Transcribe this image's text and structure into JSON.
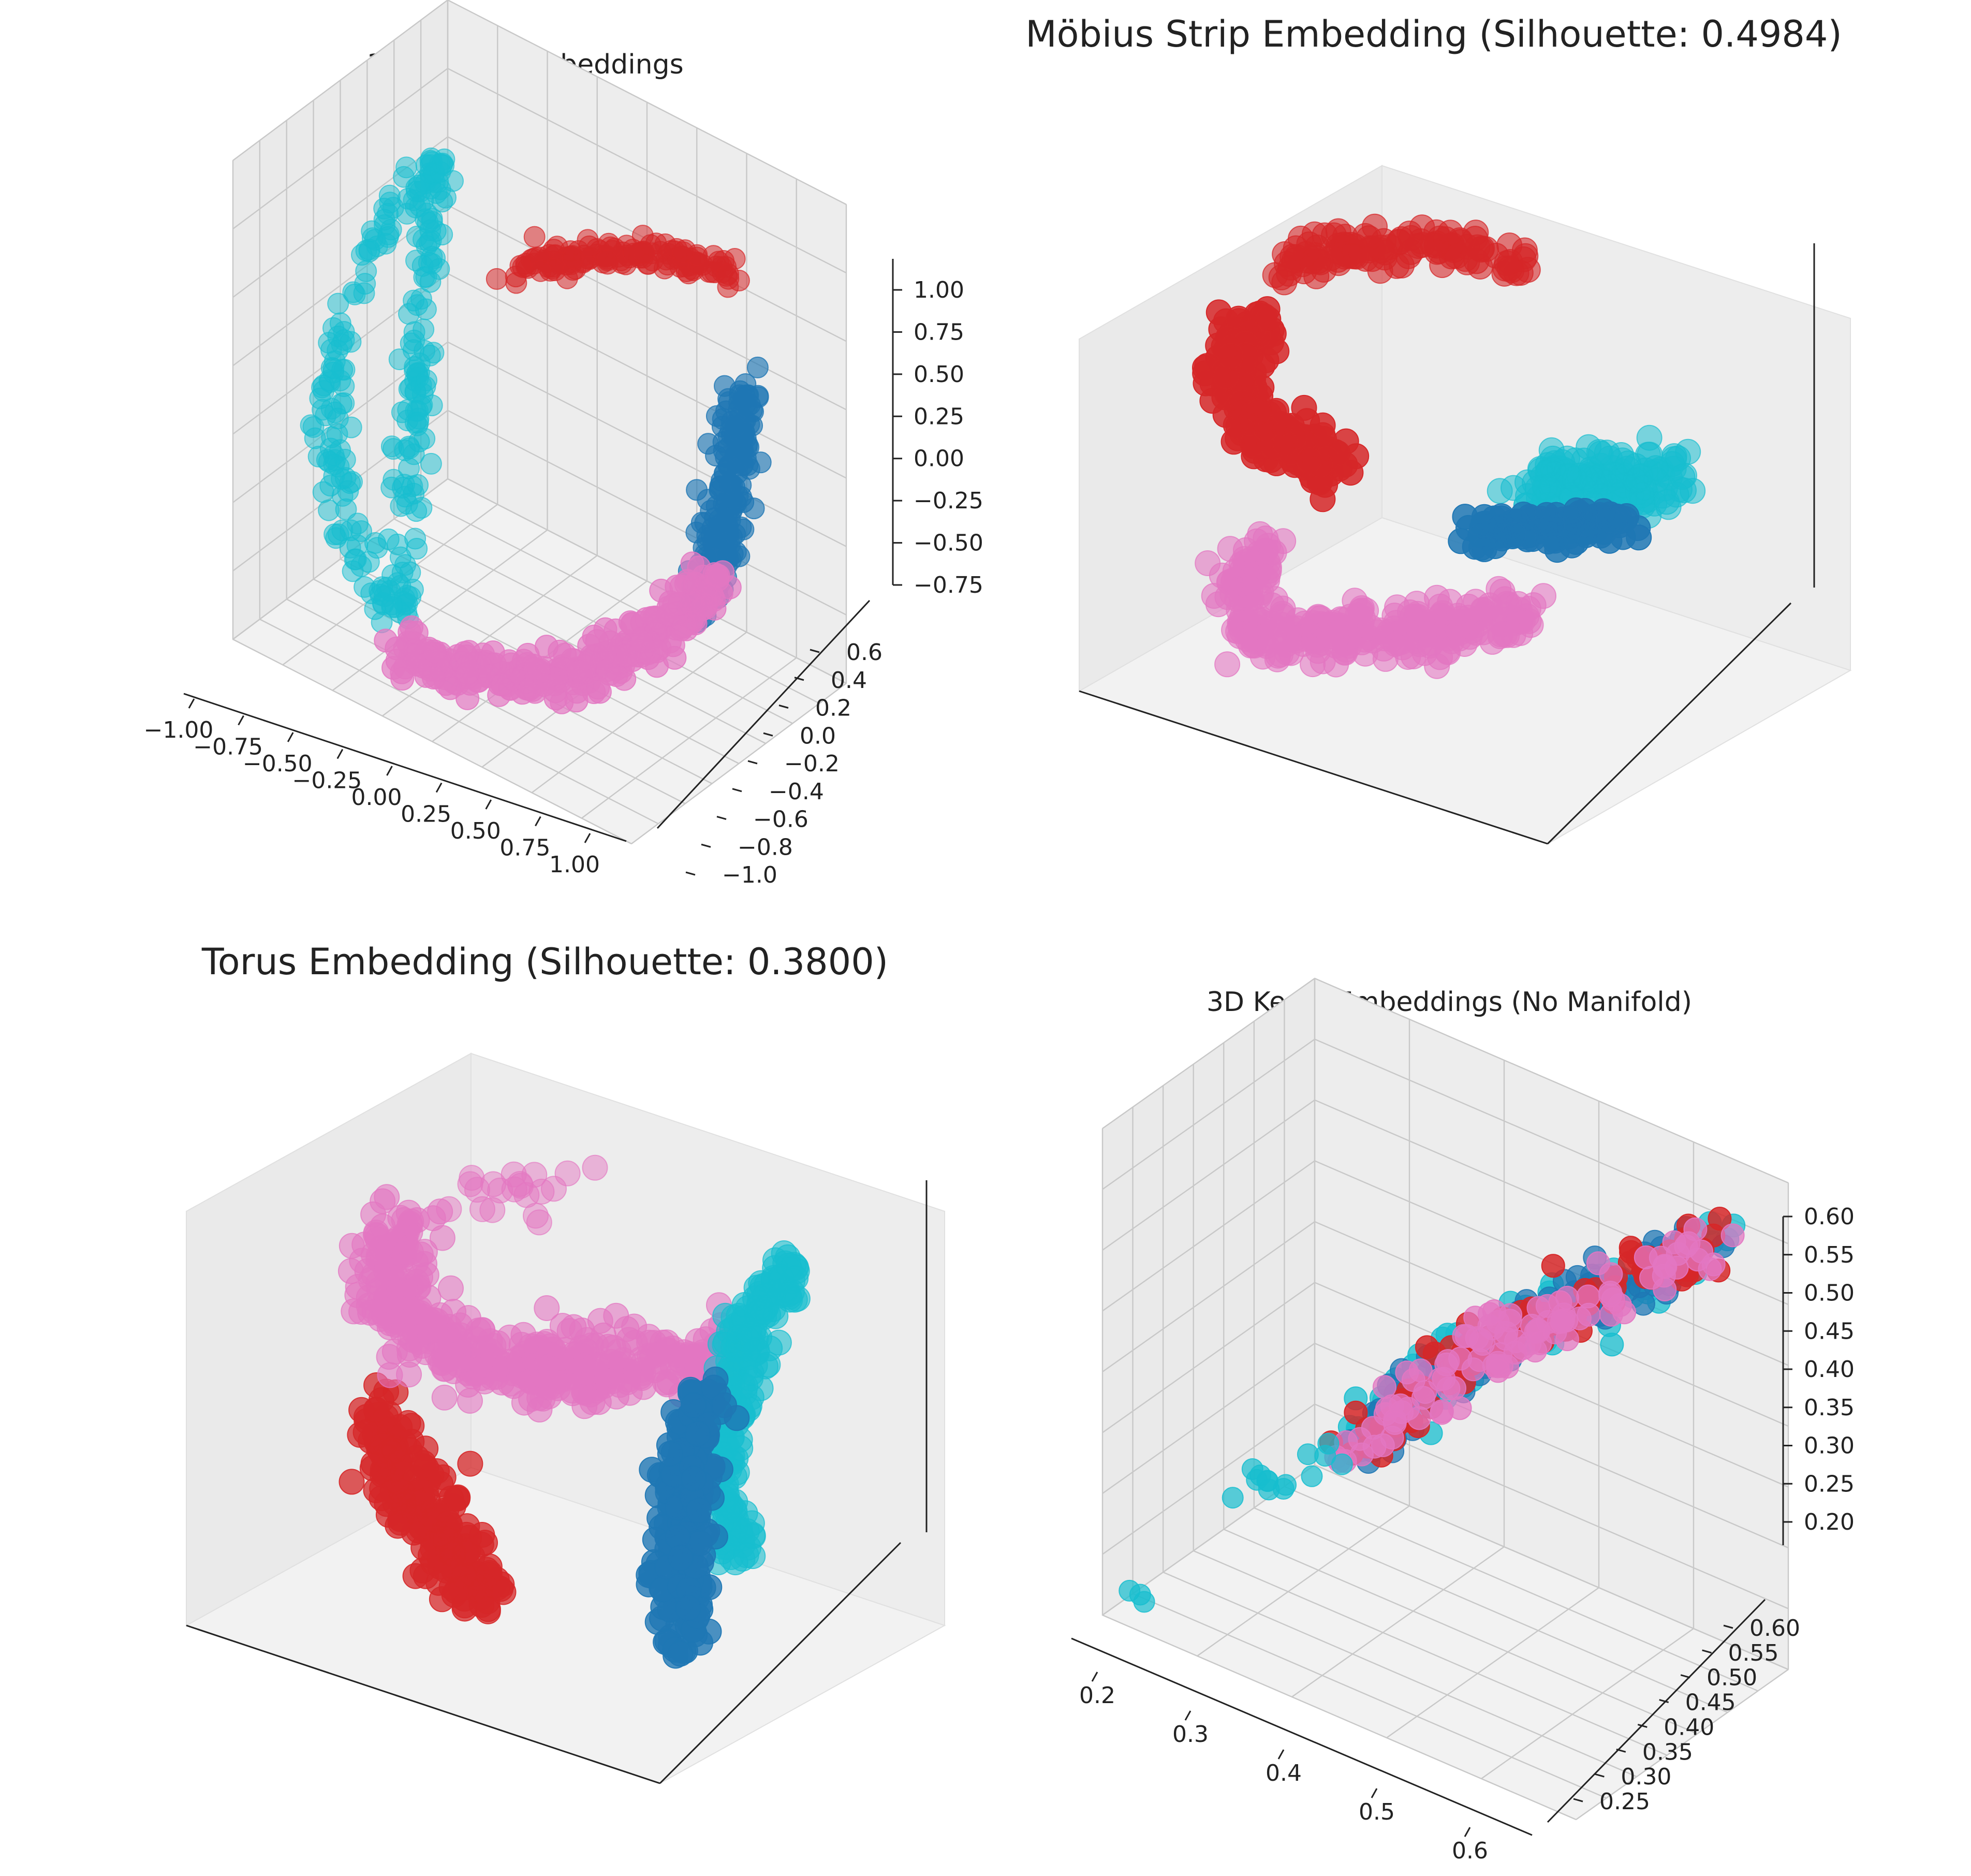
{
  "chart_data": [
    {
      "type": "scatter",
      "title": "3D Sphere Embeddings",
      "projection": "3d",
      "show_axes": true,
      "grid": true,
      "xlim": [
        -1.0,
        1.0
      ],
      "ylim": [
        -1.0,
        0.6
      ],
      "zlim": [
        -0.75,
        1.0
      ],
      "x_ticks": [
        "−1.00",
        "−0.75",
        "−0.50",
        "−0.25",
        "0.00",
        "0.25",
        "0.50",
        "0.75",
        "1.00"
      ],
      "y_ticks": [
        "−1.0",
        "−0.8",
        "−0.6",
        "−0.4",
        "−0.2",
        "0.0",
        "0.2",
        "0.4",
        "0.6"
      ],
      "z_ticks": [
        "−0.75",
        "−0.50",
        "−0.25",
        "0.00",
        "0.25",
        "0.50",
        "0.75",
        "1.00"
      ],
      "clusters": [
        {
          "color": "#d62728",
          "description": "arc near top (z≈1.0)"
        },
        {
          "color": "#17becf",
          "description": "arc on left side"
        },
        {
          "color": "#1f77b4",
          "description": "arc on right side"
        },
        {
          "color": "#e377c2",
          "description": "arc near bottom"
        }
      ]
    },
    {
      "type": "scatter",
      "title": "Möbius Strip Embedding (Silhouette: 0.4984)",
      "projection": "3d",
      "show_axes": false,
      "grid": false,
      "clusters": [
        {
          "color": "#d62728"
        },
        {
          "color": "#17becf"
        },
        {
          "color": "#1f77b4"
        },
        {
          "color": "#e377c2"
        }
      ]
    },
    {
      "type": "scatter",
      "title": "Torus Embedding (Silhouette: 0.3800)",
      "projection": "3d",
      "show_axes": false,
      "grid": false,
      "clusters": [
        {
          "color": "#e377c2"
        },
        {
          "color": "#d62728"
        },
        {
          "color": "#17becf"
        },
        {
          "color": "#1f77b4"
        }
      ]
    },
    {
      "type": "scatter",
      "title": "3D Keras Embeddings (No Manifold)",
      "projection": "3d",
      "show_axes": true,
      "grid": true,
      "xlim": [
        0.18,
        0.62
      ],
      "ylim": [
        0.22,
        0.62
      ],
      "zlim": [
        0.2,
        0.6
      ],
      "x_ticks": [
        "0.2",
        "0.3",
        "0.4",
        "0.5",
        "0.6"
      ],
      "y_ticks": [
        "0.25",
        "0.30",
        "0.35",
        "0.40",
        "0.45",
        "0.50",
        "0.55",
        "0.60"
      ],
      "z_ticks": [
        "0.20",
        "0.25",
        "0.30",
        "0.35",
        "0.40",
        "0.45",
        "0.50",
        "0.55",
        "0.60"
      ],
      "clusters": [
        {
          "color": "#17becf"
        },
        {
          "color": "#1f77b4"
        },
        {
          "color": "#d62728"
        },
        {
          "color": "#e377c2"
        }
      ]
    }
  ]
}
